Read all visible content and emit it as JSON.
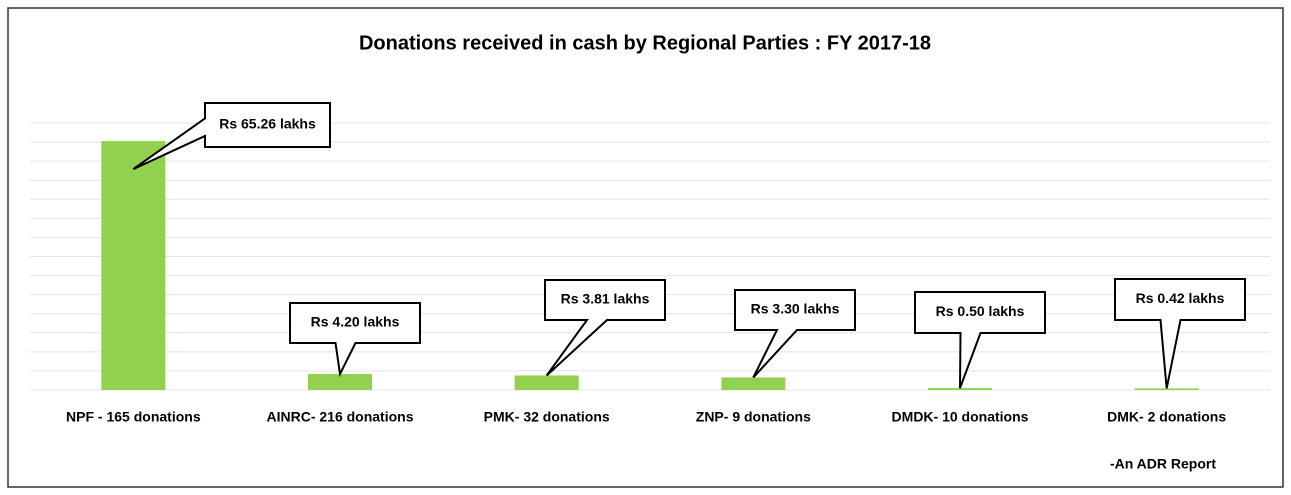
{
  "chart_data": {
    "type": "bar",
    "title": "Donations received in cash by Regional Parties : FY 2017-18",
    "categories": [
      "NPF - 165 donations",
      "AINRC- 216 donations",
      "PMK- 32 donations",
      "ZNP- 9 donations",
      "DMDK- 10 donations",
      "DMK- 2 donations"
    ],
    "values": [
      65.26,
      4.2,
      3.81,
      3.3,
      0.5,
      0.42
    ],
    "value_labels": [
      "Rs 65.26 lakhs",
      "Rs 4.20 lakhs",
      "Rs 3.81 lakhs",
      "Rs 3.30 lakhs",
      "Rs 0.50 lakhs",
      "Rs 0.42 lakhs"
    ],
    "color": "#92d050",
    "ylim": [
      0,
      70
    ],
    "yticks": [
      0,
      5,
      10,
      15,
      20,
      25,
      30,
      35,
      40,
      45,
      50,
      55,
      60,
      65,
      70
    ],
    "grid": true,
    "annotation": "-An ADR Report"
  }
}
